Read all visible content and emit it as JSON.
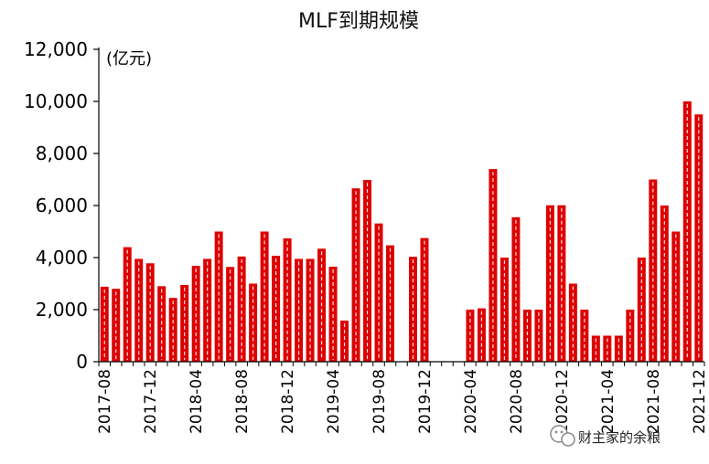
{
  "chart_data": {
    "type": "bar",
    "title": "MLF到期规模",
    "unit_label": "(亿元)",
    "ylim": [
      0,
      12000
    ],
    "yticks": [
      "0",
      "2,000",
      "4,000",
      "6,000",
      "8,000",
      "10,000",
      "12,000"
    ],
    "xtick_labels": [
      "2017-08",
      "2017-12",
      "2018-04",
      "2018-08",
      "2018-12",
      "2019-04",
      "2019-08",
      "2019-12",
      "2020-04",
      "2020-08",
      "2020-12",
      "2021-04",
      "2021-08",
      "2021-12"
    ],
    "grid": false,
    "legend": "none",
    "categories": [
      "2017-08",
      "2017-09",
      "2017-10",
      "2017-11",
      "2017-12",
      "2018-01",
      "2018-02",
      "2018-03",
      "2018-04",
      "2018-05",
      "2018-06",
      "2018-07",
      "2018-08",
      "2018-09",
      "2018-10",
      "2018-11",
      "2018-12",
      "2019-01",
      "2019-02",
      "2019-03",
      "2019-04",
      "2019-05",
      "2019-06",
      "2019-07",
      "2019-08",
      "2019-09",
      "2019-10",
      "2019-11",
      "2019-12",
      "2020-01",
      "2020-02",
      "2020-03",
      "2020-04",
      "2020-05",
      "2020-06",
      "2020-07",
      "2020-08",
      "2020-09",
      "2020-10",
      "2020-11",
      "2020-12",
      "2021-01",
      "2021-02",
      "2021-03",
      "2021-04",
      "2021-05",
      "2021-06",
      "2021-07",
      "2021-08",
      "2021-09",
      "2021-10",
      "2021-11",
      "2021-12"
    ],
    "values": [
      2880,
      2800,
      4400,
      3950,
      3780,
      2900,
      2450,
      2950,
      3680,
      3950,
      5000,
      3640,
      4040,
      3000,
      5000,
      4070,
      4740,
      3950,
      3950,
      4340,
      3650,
      1580,
      6660,
      6980,
      5310,
      4470,
      null,
      4030,
      4750,
      null,
      null,
      null,
      2000,
      2050,
      7400,
      4000,
      5550,
      2000,
      2000,
      6010,
      6010,
      3000,
      2000,
      1000,
      1000,
      1000,
      2000,
      4000,
      7000,
      6000,
      5000,
      10000,
      9500
    ],
    "colors": {
      "bar": "#dd0000",
      "bar_dash": "#ffdede"
    }
  },
  "watermark": {
    "text": "财主家的余粮",
    "icon": "wechat-icon"
  }
}
